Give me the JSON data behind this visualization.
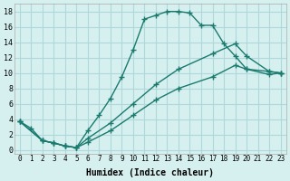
{
  "xlabel": "Humidex (Indice chaleur)",
  "background_color": "#d6f0f0",
  "grid_color": "#b0d8d8",
  "line_color": "#1a7a6e",
  "xlim": [
    -0.5,
    23.5
  ],
  "ylim": [
    -0.5,
    19
  ],
  "xticks": [
    0,
    1,
    2,
    3,
    4,
    5,
    6,
    7,
    8,
    9,
    10,
    11,
    12,
    13,
    14,
    15,
    16,
    17,
    18,
    19,
    20,
    21,
    22,
    23
  ],
  "yticks": [
    0,
    2,
    4,
    6,
    8,
    10,
    12,
    14,
    16,
    18
  ],
  "curve1_x": [
    0,
    1,
    2,
    3,
    4,
    5,
    6,
    7,
    8,
    9,
    10,
    11,
    12,
    13,
    14,
    15,
    16,
    17,
    18,
    19,
    20,
    22,
    23
  ],
  "curve1_y": [
    3.7,
    2.8,
    1.2,
    0.9,
    0.5,
    0.3,
    2.5,
    4.5,
    6.7,
    9.5,
    13.0,
    17.0,
    17.5,
    18.0,
    18.0,
    17.8,
    16.2,
    16.2,
    13.8,
    12.2,
    10.5,
    10.2,
    10.0
  ],
  "curve2_x": [
    0,
    2,
    3,
    4,
    5,
    6,
    8,
    10,
    12,
    14,
    17,
    19,
    20,
    22,
    23
  ],
  "curve2_y": [
    3.7,
    1.2,
    0.9,
    0.5,
    0.3,
    1.5,
    3.5,
    6.0,
    8.5,
    10.5,
    12.5,
    13.8,
    12.2,
    10.2,
    10.0
  ],
  "curve3_x": [
    0,
    2,
    3,
    4,
    5,
    6,
    8,
    10,
    12,
    14,
    17,
    19,
    20,
    22,
    23
  ],
  "curve3_y": [
    3.7,
    1.2,
    0.9,
    0.5,
    0.3,
    1.0,
    2.5,
    4.5,
    6.5,
    8.0,
    9.5,
    11.0,
    10.5,
    9.8,
    10.0
  ]
}
